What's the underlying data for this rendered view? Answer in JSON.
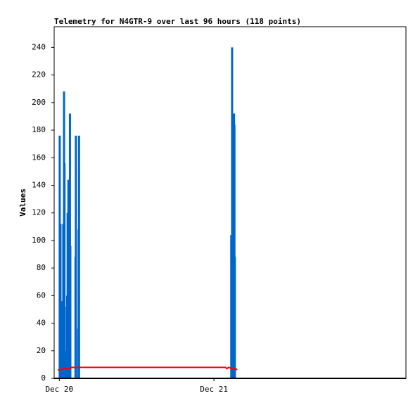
{
  "chart_data": {
    "type": "impulse-line",
    "title": "Telemetry for N4GTR-9 over last 96 hours (118 points)",
    "y_label": "Values",
    "xlim": [
      -0.8,
      53.8
    ],
    "xticks": [
      {
        "value": 0,
        "label": "Dec 20"
      },
      {
        "value": 24,
        "label": "Dec 21"
      }
    ],
    "ylim": [
      0,
      255
    ],
    "yticks": [
      0,
      20,
      40,
      60,
      80,
      100,
      120,
      140,
      160,
      180,
      200,
      220,
      240
    ],
    "series": [
      {
        "style": "impulse",
        "color": "#0066cc",
        "x": [
          0.06,
          0.12,
          0.18,
          0.24,
          0.55,
          0.61,
          0.73,
          0.8,
          0.86,
          1.16,
          1.22,
          1.29,
          1.35,
          1.41,
          1.53,
          1.65,
          1.71,
          2.51,
          2.57,
          2.94,
          3.0,
          3.06,
          26.69,
          26.82,
          26.88,
          26.94,
          27.06,
          27.12,
          27.18,
          27.24
        ],
        "values": [
          176,
          88,
          112,
          56,
          56,
          112,
          208,
          156,
          52,
          20,
          60,
          120,
          88,
          144,
          72,
          192,
          96,
          88,
          176,
          36,
          108,
          176,
          104,
          240,
          192,
          48,
          144,
          192,
          184,
          88
        ]
      },
      {
        "style": "line",
        "color": "#ff0000",
        "x": [
          -0.24,
          0.6,
          1.7,
          1.9,
          2.45,
          25.8,
          26.0,
          26.3,
          26.75,
          27.1,
          27.4,
          27.6
        ],
        "values": [
          6,
          7,
          7,
          8,
          8,
          8,
          7,
          8,
          7,
          7,
          7,
          6
        ]
      }
    ]
  }
}
